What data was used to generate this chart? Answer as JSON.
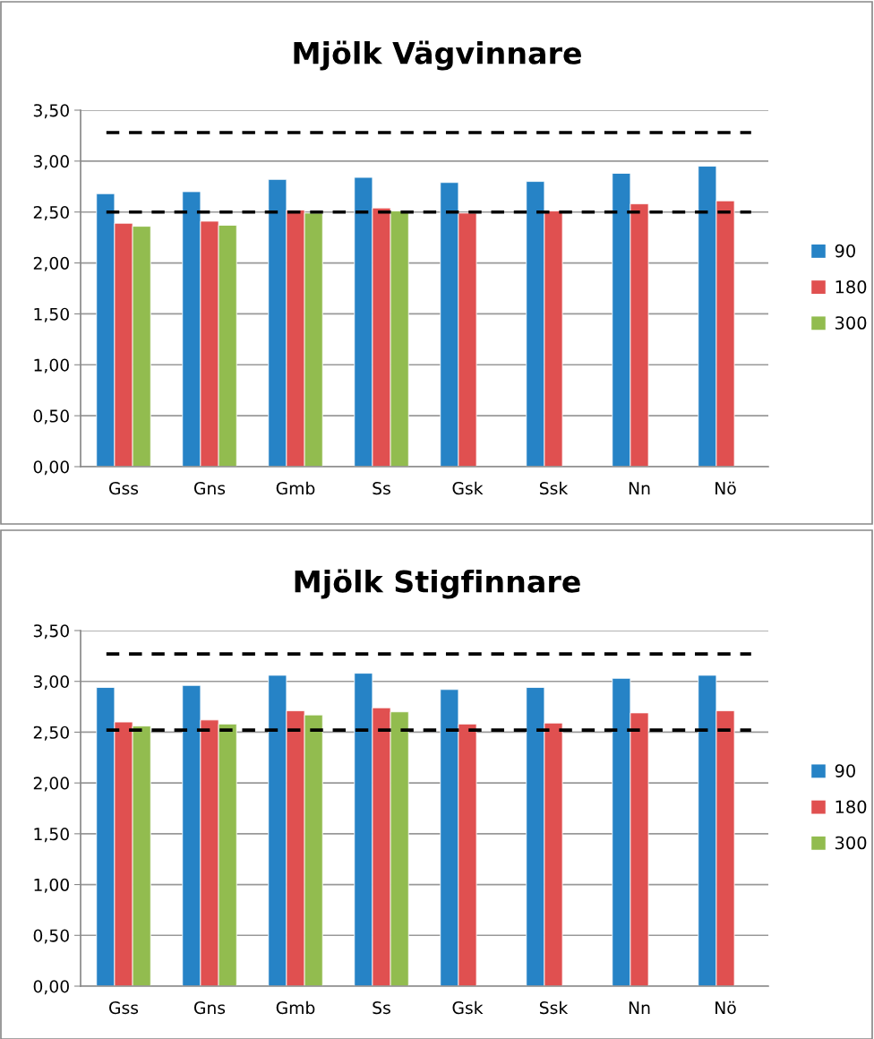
{
  "chart_data": [
    {
      "type": "bar",
      "title": "Mjölk Vägvinnare",
      "categories": [
        "Gss",
        "Gns",
        "Gmb",
        "Ss",
        "Gsk",
        "Ssk",
        "Nn",
        "Nö"
      ],
      "series": [
        {
          "name": "90",
          "color": "#2683c6",
          "values": [
            2.68,
            2.7,
            2.82,
            2.84,
            2.79,
            2.8,
            2.88,
            2.95
          ]
        },
        {
          "name": "180",
          "color": "#e05050",
          "values": [
            2.39,
            2.41,
            2.52,
            2.54,
            2.49,
            2.51,
            2.58,
            2.61
          ]
        },
        {
          "name": "300",
          "color": "#92bc4f",
          "values": [
            2.36,
            2.37,
            2.49,
            2.51,
            null,
            null,
            null,
            null
          ]
        }
      ],
      "ylim": [
        0,
        3.5
      ],
      "yticks": [
        {
          "value": 0,
          "label": "0,00"
        },
        {
          "value": 0.5,
          "label": "0,50"
        },
        {
          "value": 1,
          "label": "1,00"
        },
        {
          "value": 1.5,
          "label": "1,50"
        },
        {
          "value": 2,
          "label": "2,00"
        },
        {
          "value": 2.5,
          "label": "2,50"
        },
        {
          "value": 3,
          "label": "3,00"
        },
        {
          "value": 3.5,
          "label": "3,50"
        }
      ],
      "ref_lines": [
        {
          "axis": "y",
          "value": 3.28,
          "color": "#000000",
          "line_style": "dashed"
        },
        {
          "axis": "y",
          "value": 2.5,
          "color": "#000000",
          "line_style": "dashed"
        }
      ],
      "grid": "y",
      "legend": "right"
    },
    {
      "type": "bar",
      "title": "Mjölk Stigfinnare",
      "categories": [
        "Gss",
        "Gns",
        "Gmb",
        "Ss",
        "Gsk",
        "Ssk",
        "Nn",
        "Nö"
      ],
      "series": [
        {
          "name": "90",
          "color": "#2683c6",
          "values": [
            2.94,
            2.96,
            3.06,
            3.08,
            2.92,
            2.94,
            3.03,
            3.06
          ]
        },
        {
          "name": "180",
          "color": "#e05050",
          "values": [
            2.6,
            2.62,
            2.71,
            2.74,
            2.58,
            2.59,
            2.69,
            2.71
          ]
        },
        {
          "name": "300",
          "color": "#92bc4f",
          "values": [
            2.56,
            2.58,
            2.67,
            2.7,
            null,
            null,
            null,
            null
          ]
        }
      ],
      "ylim": [
        0,
        3.5
      ],
      "yticks": [
        {
          "value": 0,
          "label": "0,00"
        },
        {
          "value": 0.5,
          "label": "0,50"
        },
        {
          "value": 1,
          "label": "1,00"
        },
        {
          "value": 1.5,
          "label": "1,50"
        },
        {
          "value": 2,
          "label": "2,00"
        },
        {
          "value": 2.5,
          "label": "2,50"
        },
        {
          "value": 3,
          "label": "3,00"
        },
        {
          "value": 3.5,
          "label": "3,50"
        }
      ],
      "ref_lines": [
        {
          "axis": "y",
          "value": 3.27,
          "color": "#000000",
          "line_style": "dashed"
        },
        {
          "axis": "y",
          "value": 2.52,
          "color": "#000000",
          "line_style": "dashed"
        }
      ],
      "grid": "y",
      "legend": "right"
    }
  ]
}
